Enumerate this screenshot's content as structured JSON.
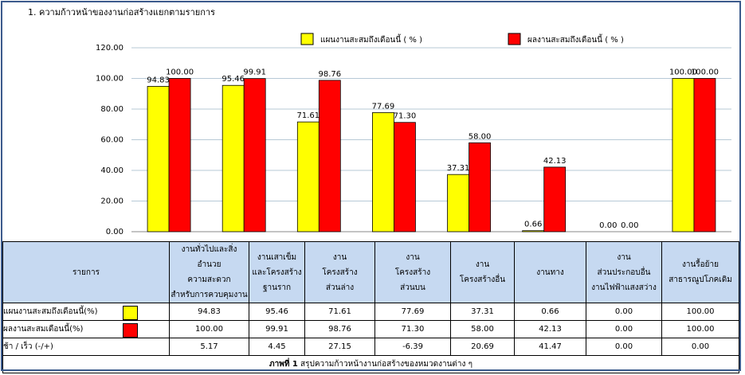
{
  "chart_data": {
    "type": "bar",
    "title": "1. ความก้าวหน้าของงานก่อสร้างแยกตามรายการ",
    "categories": [
      [
        "งานทั่วไปและสิ่งอำนวย",
        "ความสะดวก",
        "สำหรับการควบคุมงาน"
      ],
      [
        "งานเสาเข็ม",
        "และโครงสร้าง",
        "ฐานราก"
      ],
      [
        "งาน",
        "โครงสร้าง",
        "ส่วนล่าง"
      ],
      [
        "งาน",
        "โครงสร้าง",
        "ส่วนบน"
      ],
      [
        "งาน",
        "โครงสร้างอื่น"
      ],
      [
        "งานทาง"
      ],
      [
        "งาน",
        "ส่วนประกอบอื่น",
        "งานไฟฟ้าแสงสว่าง"
      ],
      [
        "งานรื้อย้าย",
        "สาธารณูปโภคเดิม"
      ]
    ],
    "series": [
      {
        "name": "แผนงานสะสมถึงเดือนนี้ ( % )",
        "color": "#ffff00",
        "values": [
          94.83,
          95.46,
          71.61,
          77.69,
          37.31,
          0.66,
          0.0,
          100.0
        ],
        "value_labels": [
          "94.83",
          "95.46",
          "71.61",
          "77.69",
          "37.31",
          "0.66",
          "0.00",
          "100.00"
        ]
      },
      {
        "name": "ผลงานสะสมถึงเดือนนี้ ( % )",
        "color": "#ff0000",
        "values": [
          100.0,
          99.91,
          98.76,
          71.3,
          58.0,
          42.13,
          0.0,
          100.0
        ],
        "value_labels": [
          "100.00",
          "99.91",
          "98.76",
          "71.30",
          "58.00",
          "42.13",
          "0.00",
          "100.00"
        ]
      }
    ],
    "ylim": [
      0,
      120
    ],
    "yticks": [
      {
        "value": 0,
        "label": "0.00"
      },
      {
        "value": 20,
        "label": "20.00"
      },
      {
        "value": 40,
        "label": "40.00"
      },
      {
        "value": 60,
        "label": "60.00"
      },
      {
        "value": 80,
        "label": "80.00"
      },
      {
        "value": 100,
        "label": "100.00"
      },
      {
        "value": 120,
        "label": "120.00"
      }
    ],
    "grid": true
  },
  "table": {
    "header": "รายการ",
    "row_names": [
      "แผนงานสะสมถึงเดือนนี้(%)",
      "ผลงานสะสมเดือนนี้(%)",
      "ช้า / เร็ว  (-/+)"
    ],
    "diff": [
      "5.17",
      "4.45",
      "27.15",
      "-6.39",
      "20.69",
      "41.47",
      "0.00",
      "0.00"
    ],
    "caption_label": "ภาพที่ 1",
    "caption": "สรุปความก้าวหน้างานก่อสร้างของหมวดงานต่าง ๆ"
  }
}
